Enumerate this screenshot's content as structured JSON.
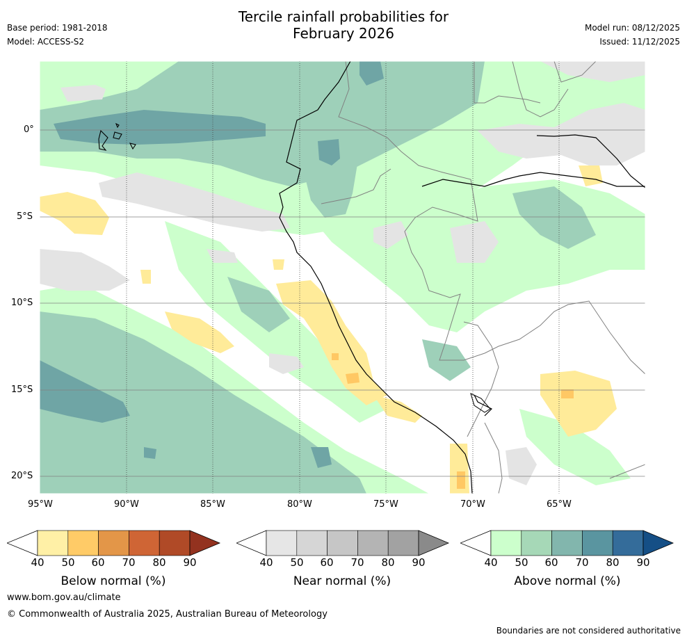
{
  "header": {
    "title_line1": "Tercile rainfall probabilities for",
    "title_line2": "February 2026",
    "base_period": "Base period: 1981-2018",
    "model": "Model: ACCESS-S2",
    "model_run": "Model run: 08/12/2025",
    "issued": "Issued: 11/12/2025"
  },
  "map": {
    "lat_labels": [
      "0°",
      "5°S",
      "10°S",
      "15°S",
      "20°S"
    ],
    "lon_labels": [
      "95°W",
      "90°W",
      "85°W",
      "80°W",
      "75°W",
      "70°W",
      "65°W"
    ],
    "colors": {
      "land_bg": "#ffffff",
      "grey": "#e4e4e4",
      "green1": "#ccffcc",
      "green2": "#9ed0b9",
      "green3": "#6fa5a5",
      "yellow1": "#ffeb99",
      "yellow2": "#ffc864",
      "coast": "#000000",
      "border": "#808080"
    }
  },
  "colorbars": [
    {
      "label": "Below normal (%)",
      "ticks": [
        "40",
        "50",
        "60",
        "70",
        "80",
        "90"
      ],
      "colors": [
        "#fff0a6",
        "#ffcb67",
        "#e39648",
        "#cf6535",
        "#b04a27",
        "#93321f"
      ]
    },
    {
      "label": "Near normal (%)",
      "ticks": [
        "40",
        "50",
        "60",
        "70",
        "80",
        "90"
      ],
      "colors": [
        "#e6e6e6",
        "#d6d6d6",
        "#c6c6c6",
        "#b4b4b4",
        "#a2a2a2",
        "#8a8a8a"
      ]
    },
    {
      "label": "Above normal (%)",
      "ticks": [
        "40",
        "50",
        "60",
        "70",
        "80",
        "90"
      ],
      "colors": [
        "#ccffcc",
        "#a6d8b7",
        "#82b6ad",
        "#5a95a0",
        "#346c9a",
        "#154f86"
      ]
    }
  ],
  "footer": {
    "website": "www.bom.gov.au/climate",
    "copyright": "© Commonwealth of Australia 2025, Australian Bureau of Meteorology",
    "disclaimer": "Boundaries are not considered authoritative"
  }
}
